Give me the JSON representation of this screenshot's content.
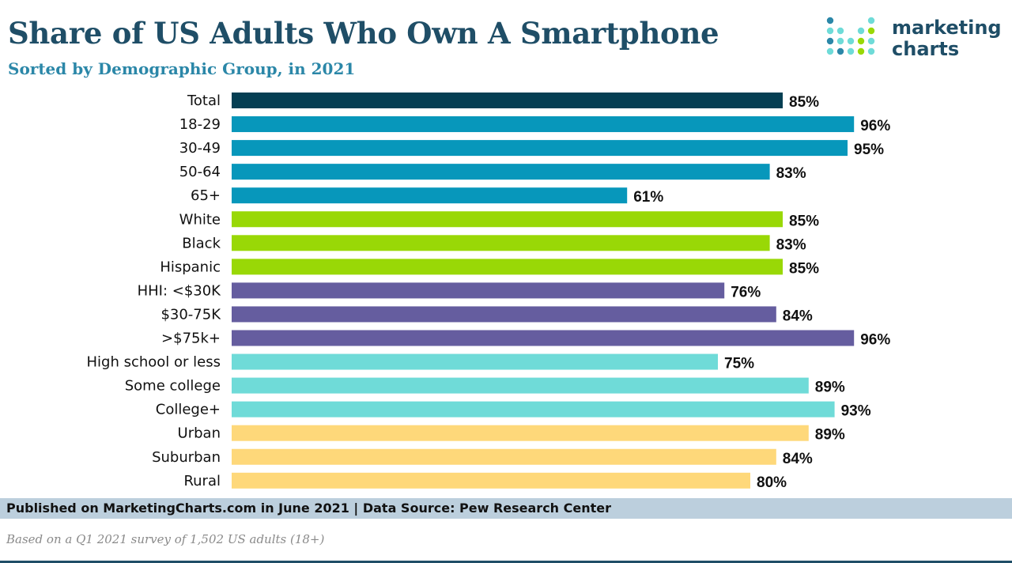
{
  "title": "Share of US Adults Who Own A Smartphone",
  "subtitle": "Sorted by Demographic Group, in 2021",
  "logo": {
    "line1": "marketing",
    "line2": "charts"
  },
  "footer": "Published on MarketingCharts.com in June 2021 | Data Source: Pew Research Center",
  "note": "Based on a Q1 2021 survey of 1,502 US adults (18+)",
  "colors": {
    "total": "#053f53",
    "age": "#0797bb",
    "race": "#99d806",
    "income": "#655d9f",
    "education": "#6fdbd8",
    "community": "#fed87a",
    "title": "#1f4e67",
    "subtitle": "#2b87a8"
  },
  "chart_data": {
    "type": "bar",
    "orientation": "horizontal",
    "categories": [
      "Total",
      "18-29",
      "30-49",
      "50-64",
      "65+",
      "White",
      "Black",
      "Hispanic",
      "HHI: <$30K",
      "$30-75K",
      ">$75k+",
      "High school or less",
      "Some college",
      "College+",
      "Urban",
      "Suburban",
      "Rural"
    ],
    "values": [
      85,
      96,
      95,
      83,
      61,
      85,
      83,
      85,
      76,
      84,
      96,
      75,
      89,
      93,
      89,
      84,
      80
    ],
    "value_labels": [
      "85%",
      "96%",
      "95%",
      "83%",
      "61%",
      "85%",
      "83%",
      "85%",
      "76%",
      "84%",
      "96%",
      "75%",
      "89%",
      "93%",
      "89%",
      "84%",
      "80%"
    ],
    "groups": [
      "total",
      "age",
      "age",
      "age",
      "age",
      "race",
      "race",
      "race",
      "income",
      "income",
      "income",
      "education",
      "education",
      "education",
      "community",
      "community",
      "community"
    ],
    "unit": "%",
    "xlim": [
      0,
      100
    ],
    "grid": false,
    "legend": "none"
  }
}
